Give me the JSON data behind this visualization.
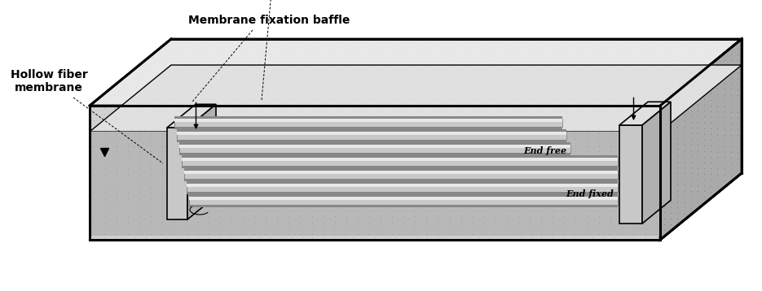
{
  "background_color": "#ffffff",
  "label_membrane_fixation": "Membrane fixation baffle",
  "label_hollow_fiber": "Hollow fiber\nmembrane",
  "label_end_fixed": "End fixed",
  "label_end_free": "End free",
  "colors": {
    "floor_dark": "#7a7a7a",
    "floor_dotted": "#888888",
    "front_wall": "#cccccc",
    "front_wall_dot": "#555555",
    "top_surface": "#d8d8d8",
    "top_dot": "#aaaaaa",
    "right_wall": "#aaaaaa",
    "right_wall_dot": "#555555",
    "inner_floor_dark": "#888888",
    "inner_top_light": "#e0e0e0",
    "inner_top_dot": "#bbbbbb",
    "baffle_front": "#c8c8c8",
    "baffle_top": "#e0e0e0",
    "baffle_right": "#b0b0b0",
    "tube_body": "#c0c0c0",
    "tube_top": "#e8e8e8",
    "tube_shadow": "#888888"
  }
}
